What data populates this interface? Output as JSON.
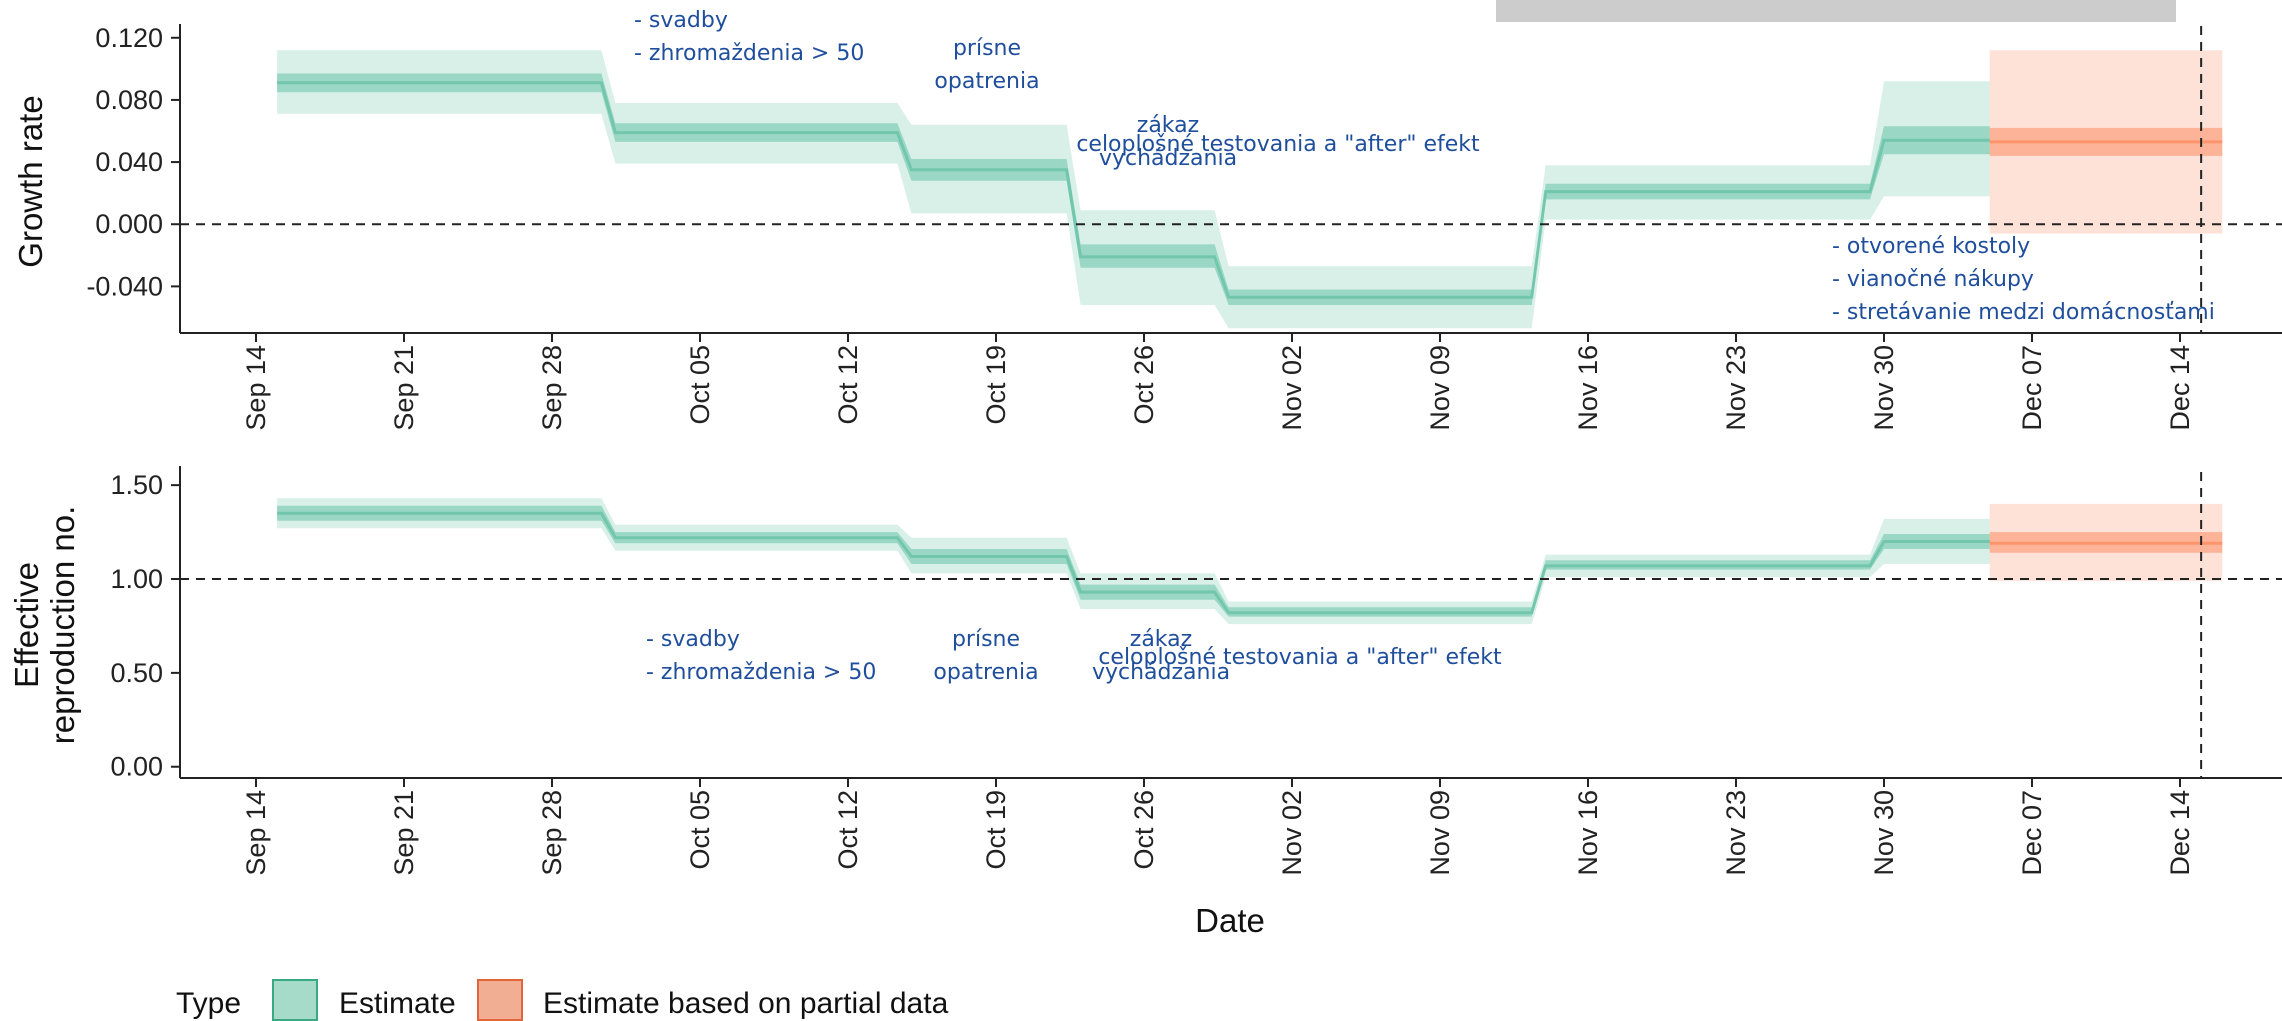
{
  "colors": {
    "estimate": "#66c2a5",
    "estimate_partial": "#fc8d62",
    "annotation_text": "#1f4e9c",
    "gray_bar": "#cccccc"
  },
  "x_axis": {
    "title": "Date",
    "tick_labels": [
      "Sep 14",
      "Sep 21",
      "Sep 28",
      "Oct 05",
      "Oct 12",
      "Oct 19",
      "Oct 26",
      "Nov 02",
      "Nov 09",
      "Nov 16",
      "Nov 23",
      "Nov 30",
      "Dec 07",
      "Dec 14"
    ]
  },
  "legend": {
    "title": "Type",
    "items": [
      "Estimate",
      "Estimate based on partial data"
    ]
  },
  "chart_data": [
    {
      "type": "area",
      "ylabel": "Growth rate",
      "xlabel": "",
      "y_tick_labels": [
        "-0.040",
        "0.000",
        "0.040",
        "0.080",
        "0.120"
      ],
      "ylim": [
        -0.07,
        0.125
      ],
      "xlim": [
        "2020-09-12",
        "2020-12-16"
      ],
      "reference_line_y": 0.0,
      "reference_line_x": "2020-12-15",
      "series": [
        {
          "name": "Estimate",
          "segments": [
            {
              "start": "2020-09-15",
              "end": "2020-09-30",
              "median": 0.091,
              "inner": [
                0.085,
                0.097
              ],
              "outer": [
                0.071,
                0.112
              ]
            },
            {
              "start": "2020-10-01",
              "end": "2020-10-14",
              "median": 0.059,
              "inner": [
                0.053,
                0.065
              ],
              "outer": [
                0.039,
                0.078
              ]
            },
            {
              "start": "2020-10-15",
              "end": "2020-10-22",
              "median": 0.035,
              "inner": [
                0.028,
                0.042
              ],
              "outer": [
                0.007,
                0.064
              ]
            },
            {
              "start": "2020-10-23",
              "end": "2020-10-29",
              "median": -0.021,
              "inner": [
                -0.028,
                -0.013
              ],
              "outer": [
                -0.052,
                0.009
              ]
            },
            {
              "start": "2020-10-30",
              "end": "2020-11-13",
              "median": -0.047,
              "inner": [
                -0.052,
                -0.042
              ],
              "outer": [
                -0.067,
                -0.027
              ]
            },
            {
              "start": "2020-11-14",
              "end": "2020-11-29",
              "median": 0.021,
              "inner": [
                0.016,
                0.026
              ],
              "outer": [
                0.003,
                0.038
              ]
            },
            {
              "start": "2020-11-30",
              "end": "2020-12-04",
              "median": 0.054,
              "inner": [
                0.045,
                0.063
              ],
              "outer": [
                0.018,
                0.092
              ]
            }
          ]
        },
        {
          "name": "Estimate based on partial data",
          "segments": [
            {
              "start": "2020-12-05",
              "end": "2020-12-15",
              "median": 0.053,
              "inner": [
                0.044,
                0.062
              ],
              "outer": [
                -0.006,
                0.112
              ]
            }
          ]
        }
      ],
      "annotations": [
        {
          "lines": [
            "- svadby",
            "- zhromaždenia > 50"
          ]
        },
        {
          "lines": [
            "prísne",
            "opatrenia"
          ]
        },
        {
          "lines": [
            "zákaz",
            "vychádzania"
          ]
        },
        {
          "lines": [
            "celoplošné testovania a \"after\" efekt"
          ]
        },
        {
          "lines": [
            "- otvorené kostoly",
            "- vianočné nákupy",
            "- stretávanie medzi domácnosťami"
          ]
        }
      ]
    },
    {
      "type": "area",
      "ylabel": "Effective reproduction no.",
      "xlabel": "Date",
      "y_tick_labels": [
        "0.00",
        "0.50",
        "1.00",
        "1.50"
      ],
      "ylim": [
        -0.06,
        1.57
      ],
      "xlim": [
        "2020-09-12",
        "2020-12-16"
      ],
      "reference_line_y": 1.0,
      "reference_line_x": "2020-12-15",
      "series": [
        {
          "name": "Estimate",
          "segments": [
            {
              "start": "2020-09-15",
              "end": "2020-09-30",
              "median": 1.35,
              "inner": [
                1.31,
                1.39
              ],
              "outer": [
                1.27,
                1.43
              ]
            },
            {
              "start": "2020-10-01",
              "end": "2020-10-14",
              "median": 1.22,
              "inner": [
                1.19,
                1.25
              ],
              "outer": [
                1.15,
                1.29
              ]
            },
            {
              "start": "2020-10-15",
              "end": "2020-10-22",
              "median": 1.12,
              "inner": [
                1.08,
                1.16
              ],
              "outer": [
                1.03,
                1.22
              ]
            },
            {
              "start": "2020-10-23",
              "end": "2020-10-29",
              "median": 0.93,
              "inner": [
                0.89,
                0.97
              ],
              "outer": [
                0.84,
                1.03
              ]
            },
            {
              "start": "2020-10-30",
              "end": "2020-11-13",
              "median": 0.82,
              "inner": [
                0.8,
                0.85
              ],
              "outer": [
                0.76,
                0.88
              ]
            },
            {
              "start": "2020-11-14",
              "end": "2020-11-29",
              "median": 1.07,
              "inner": [
                1.05,
                1.1
              ],
              "outer": [
                1.01,
                1.13
              ]
            },
            {
              "start": "2020-11-30",
              "end": "2020-12-04",
              "median": 1.2,
              "inner": [
                1.16,
                1.24
              ],
              "outer": [
                1.08,
                1.32
              ]
            }
          ]
        },
        {
          "name": "Estimate based on partial data",
          "segments": [
            {
              "start": "2020-12-05",
              "end": "2020-12-15",
              "median": 1.19,
              "inner": [
                1.14,
                1.25
              ],
              "outer": [
                0.99,
                1.4
              ]
            }
          ]
        }
      ],
      "annotations": [
        {
          "lines": [
            "- svadby",
            "- zhromaždenia > 50"
          ]
        },
        {
          "lines": [
            "prísne",
            "opatrenia"
          ]
        },
        {
          "lines": [
            "zákaz",
            "vychádzania"
          ]
        },
        {
          "lines": [
            "celoplošné testovania a \"after\" efekt"
          ]
        }
      ]
    }
  ]
}
